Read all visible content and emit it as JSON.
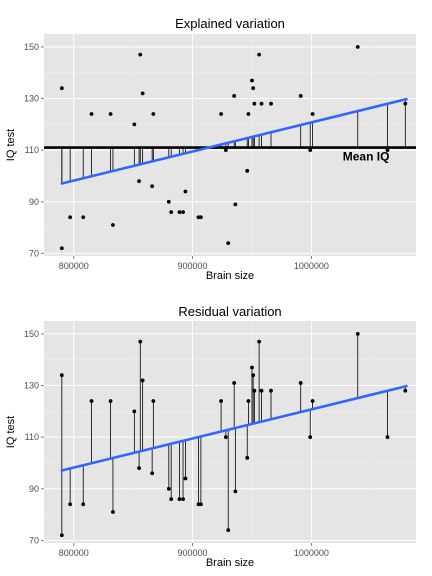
{
  "chart_data": [
    {
      "type": "scatter",
      "title": "Explained variation",
      "xlabel": "Brain size",
      "ylabel": "IQ test",
      "xlim": [
        775000,
        1088000
      ],
      "ylim": [
        69,
        155
      ],
      "x_ticks": [
        800000,
        900000,
        1000000
      ],
      "y_ticks": [
        70,
        90,
        110,
        130,
        150
      ],
      "grid": true,
      "mean_iq": 111,
      "mean_label": "Mean IQ",
      "fit_line": {
        "intercept": 8.06,
        "slope": 0.0001127,
        "x_range": [
          790000,
          1080000
        ]
      },
      "segments": "vertical lines from fitted value to mean IQ at each observation",
      "points": [
        [
          790000,
          134
        ],
        [
          790000,
          72
        ],
        [
          797000,
          84
        ],
        [
          808000,
          84
        ],
        [
          815000,
          124
        ],
        [
          831000,
          124
        ],
        [
          833000,
          81
        ],
        [
          851000,
          120
        ],
        [
          855000,
          98
        ],
        [
          856000,
          147
        ],
        [
          858000,
          132
        ],
        [
          866000,
          96
        ],
        [
          867000,
          124
        ],
        [
          880000,
          90
        ],
        [
          882000,
          86
        ],
        [
          889000,
          86
        ],
        [
          892000,
          86
        ],
        [
          894000,
          94
        ],
        [
          905000,
          84
        ],
        [
          907000,
          84
        ],
        [
          924000,
          124
        ],
        [
          928000,
          110
        ],
        [
          930000,
          74
        ],
        [
          935000,
          131
        ],
        [
          936000,
          89
        ],
        [
          946000,
          102
        ],
        [
          947000,
          124
        ],
        [
          950000,
          137
        ],
        [
          951000,
          134
        ],
        [
          952000,
          128
        ],
        [
          956000,
          147
        ],
        [
          958000,
          128
        ],
        [
          966000,
          128
        ],
        [
          991000,
          131
        ],
        [
          999000,
          110
        ],
        [
          1001000,
          124
        ],
        [
          1039000,
          150
        ],
        [
          1064000,
          110
        ],
        [
          1079000,
          128
        ]
      ]
    },
    {
      "type": "scatter",
      "title": "Residual variation",
      "xlabel": "Brain size",
      "ylabel": "IQ test",
      "xlim": [
        775000,
        1088000
      ],
      "ylim": [
        69,
        155
      ],
      "x_ticks": [
        800000,
        900000,
        1000000
      ],
      "y_ticks": [
        70,
        90,
        110,
        130,
        150
      ],
      "grid": true,
      "fit_line": {
        "intercept": 8.06,
        "slope": 0.0001127,
        "x_range": [
          790000,
          1080000
        ]
      },
      "segments": "vertical lines from each observation to its fitted value",
      "points": [
        [
          790000,
          134
        ],
        [
          790000,
          72
        ],
        [
          797000,
          84
        ],
        [
          808000,
          84
        ],
        [
          815000,
          124
        ],
        [
          831000,
          124
        ],
        [
          833000,
          81
        ],
        [
          851000,
          120
        ],
        [
          855000,
          98
        ],
        [
          856000,
          147
        ],
        [
          858000,
          132
        ],
        [
          866000,
          96
        ],
        [
          867000,
          124
        ],
        [
          880000,
          90
        ],
        [
          882000,
          86
        ],
        [
          889000,
          86
        ],
        [
          892000,
          86
        ],
        [
          894000,
          94
        ],
        [
          905000,
          84
        ],
        [
          907000,
          84
        ],
        [
          924000,
          124
        ],
        [
          928000,
          110
        ],
        [
          930000,
          74
        ],
        [
          935000,
          131
        ],
        [
          936000,
          89
        ],
        [
          946000,
          102
        ],
        [
          947000,
          124
        ],
        [
          950000,
          137
        ],
        [
          951000,
          134
        ],
        [
          952000,
          128
        ],
        [
          956000,
          147
        ],
        [
          958000,
          128
        ],
        [
          966000,
          128
        ],
        [
          991000,
          131
        ],
        [
          999000,
          110
        ],
        [
          1001000,
          124
        ],
        [
          1039000,
          150
        ],
        [
          1064000,
          110
        ],
        [
          1079000,
          128
        ]
      ]
    }
  ],
  "colors": {
    "panel_background": "#e5e5e5",
    "grid_major": "#ffffff",
    "grid_minor": "#f2f2f2",
    "fit_line": "#3366ff",
    "points": "#000000",
    "segments": "#000000",
    "mean_line": "#000000",
    "tick_text": "#4d4d4d"
  }
}
